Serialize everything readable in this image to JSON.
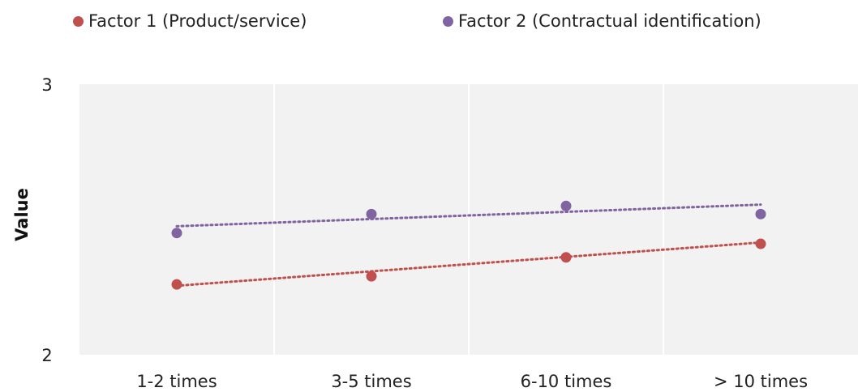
{
  "chart_data": {
    "type": "line",
    "categories": [
      "1-2 times",
      "3-5 times",
      "6-10 times",
      "> 10 times"
    ],
    "series": [
      {
        "name": "Factor 1 (Product/service)",
        "color": "#c0504d",
        "values": [
          2.26,
          2.29,
          2.36,
          2.41
        ],
        "trendline": [
          2.255,
          2.31,
          2.36,
          2.415
        ]
      },
      {
        "name": "Factor 2 (Contractual identification)",
        "color": "#8064a2",
        "values": [
          2.45,
          2.52,
          2.55,
          2.52
        ],
        "trendline": [
          2.475,
          2.505,
          2.53,
          2.555
        ]
      }
    ],
    "xlabel": "",
    "ylabel": "Value",
    "ylim": [
      2,
      3
    ],
    "yticks": [
      "2",
      "3"
    ],
    "grid": "vertical",
    "legend_position": "top",
    "plot_background": "#f2f2f2"
  }
}
